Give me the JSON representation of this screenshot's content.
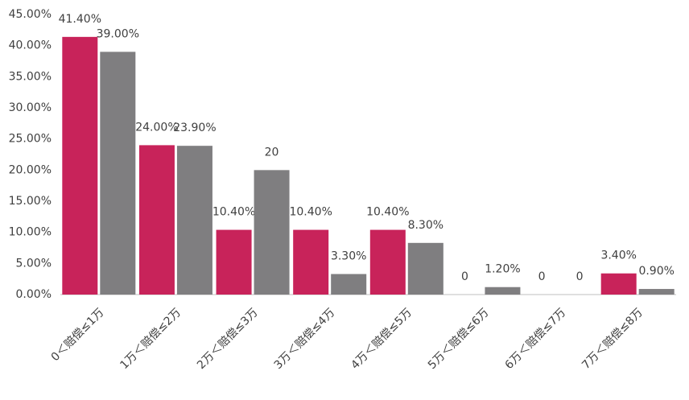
{
  "chart_data": {
    "type": "bar",
    "categories": [
      "0＜赔偿≤1万",
      "1万＜赔偿≤2万",
      "2万＜赔偿≤3万",
      "3万＜赔偿≤4万",
      "4万＜赔偿≤5万",
      "5万＜赔偿≤6万",
      "6万＜赔偿≤7万",
      "7万＜赔偿≤8万"
    ],
    "series": [
      {
        "color": "#c8235a",
        "values": [
          41.4,
          24.0,
          10.4,
          10.4,
          10.4,
          0,
          0,
          3.4
        ],
        "value_labels": [
          "41.40%",
          "24.00%",
          "10.40%",
          "10.40%",
          "10.40%",
          "0",
          "0",
          "3.40%"
        ]
      },
      {
        "color": "#7f7e80",
        "values": [
          39.0,
          23.9,
          20,
          3.3,
          8.3,
          1.2,
          0,
          0.9
        ],
        "value_labels": [
          "39.00%",
          "23.90%",
          "20",
          "3.30%",
          "8.30%",
          "1.20%",
          "0",
          "0.90%"
        ]
      }
    ],
    "ylim": [
      0,
      45
    ],
    "yticks": [
      {
        "value": 0,
        "label": "0.00%"
      },
      {
        "value": 5,
        "label": "5.00%"
      },
      {
        "value": 10,
        "label": "10.00%"
      },
      {
        "value": 15,
        "label": "15.00%"
      },
      {
        "value": 20,
        "label": "20.00%"
      },
      {
        "value": 25,
        "label": "25.00%"
      },
      {
        "value": 30,
        "label": "30.00%"
      },
      {
        "value": 35,
        "label": "35.00%"
      },
      {
        "value": 40,
        "label": "40.00%"
      },
      {
        "value": 45,
        "label": "45.00%"
      }
    ],
    "grid": false
  }
}
